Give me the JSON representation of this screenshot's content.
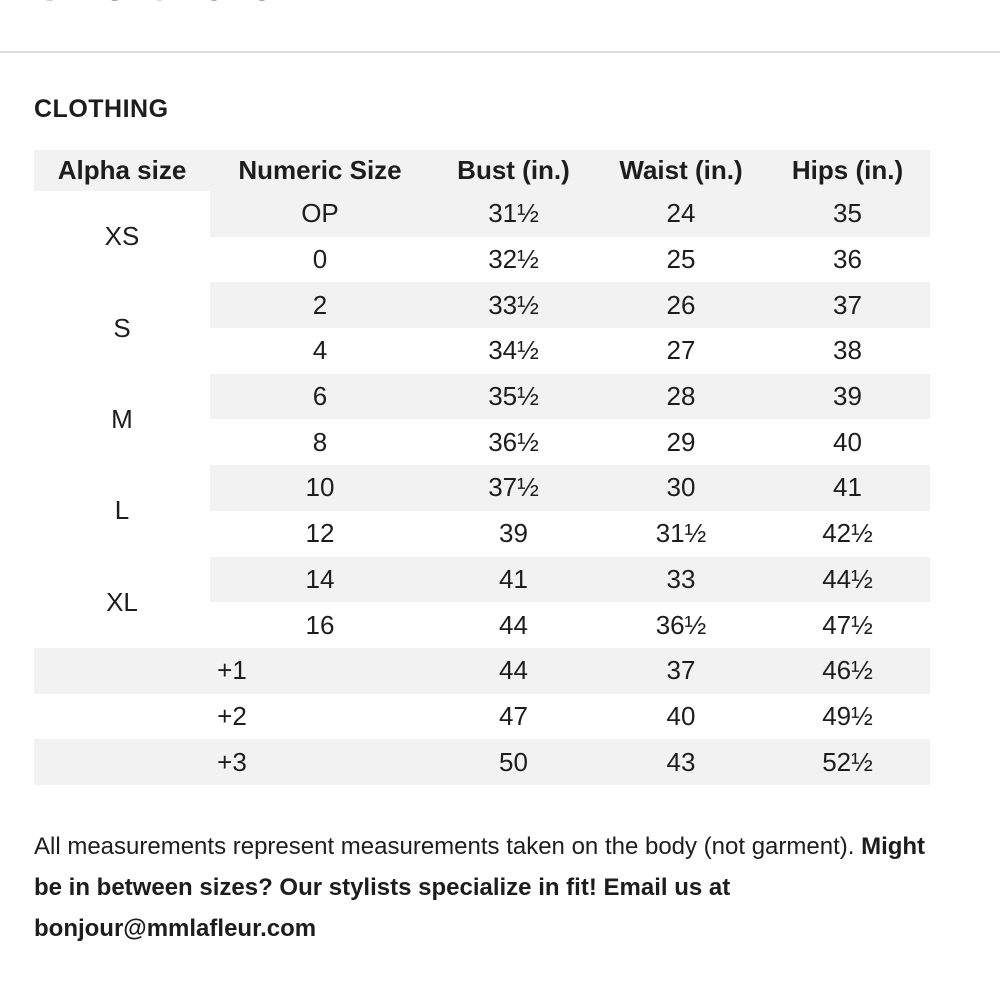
{
  "page_title": "Size Chart",
  "section_title": "CLOTHING",
  "table": {
    "headers": [
      "Alpha size",
      "Numeric Size",
      "Bust (in.)",
      "Waist (in.)",
      "Hips (in.)"
    ],
    "rows": [
      {
        "alpha": "XS",
        "numeric": "OP",
        "bust": "31½",
        "waist": "24",
        "hips": "35"
      },
      {
        "numeric": "0",
        "bust": "32½",
        "waist": "25",
        "hips": "36"
      },
      {
        "alpha": "S",
        "numeric": "2",
        "bust": "33½",
        "waist": "26",
        "hips": "37"
      },
      {
        "numeric": "4",
        "bust": "34½",
        "waist": "27",
        "hips": "38"
      },
      {
        "alpha": "M",
        "numeric": "6",
        "bust": "35½",
        "waist": "28",
        "hips": "39"
      },
      {
        "numeric": "8",
        "bust": "36½",
        "waist": "29",
        "hips": "40"
      },
      {
        "alpha": "L",
        "numeric": "10",
        "bust": "37½",
        "waist": "30",
        "hips": "41"
      },
      {
        "numeric": "12",
        "bust": "39",
        "waist": "31½",
        "hips": "42½"
      },
      {
        "alpha": "XL",
        "numeric": "14",
        "bust": "41",
        "waist": "33",
        "hips": "44½"
      },
      {
        "numeric": "16",
        "bust": "44",
        "waist": "36½",
        "hips": "47½"
      },
      {
        "plus": "+1",
        "bust": "44",
        "waist": "37",
        "hips": "46½"
      },
      {
        "plus": "+2",
        "bust": "47",
        "waist": "40",
        "hips": "49½"
      },
      {
        "plus": "+3",
        "bust": "50",
        "waist": "43",
        "hips": "52½"
      }
    ]
  },
  "note": {
    "text": "All measurements represent measurements taken on the body (not garment). ",
    "bold": "Might be in between sizes? Our stylists specialize in fit! Email us at bonjour@mmlafleur.com"
  }
}
